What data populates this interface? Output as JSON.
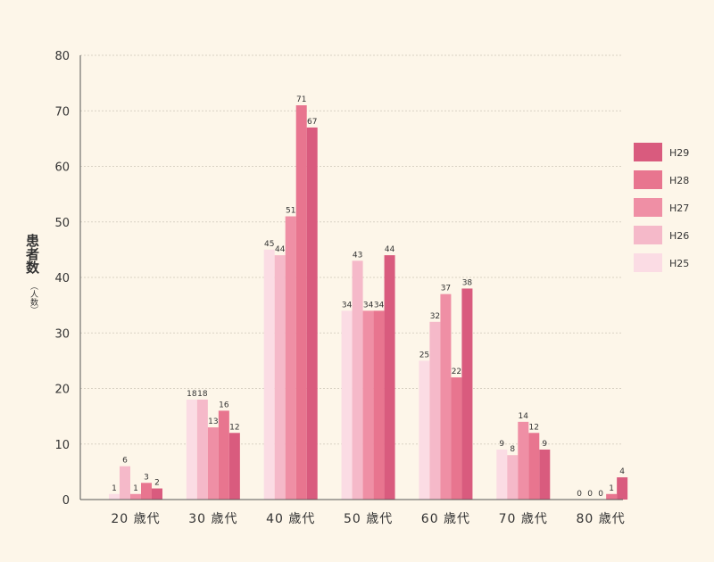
{
  "chart_data": {
    "type": "bar",
    "categories": [
      "20 歳代",
      "30 歳代",
      "40 歳代",
      "50 歳代",
      "60 歳代",
      "70 歳代",
      "80 歳代"
    ],
    "series": [
      {
        "name": "H25",
        "color": "#fbdce4",
        "values": [
          1,
          18,
          45,
          34,
          25,
          9,
          0
        ]
      },
      {
        "name": "H26",
        "color": "#f5b9c9",
        "values": [
          6,
          18,
          44,
          43,
          32,
          8,
          0
        ]
      },
      {
        "name": "H27",
        "color": "#ef8fa5",
        "values": [
          1,
          13,
          51,
          34,
          37,
          14,
          0
        ]
      },
      {
        "name": "H28",
        "color": "#e8758f",
        "values": [
          3,
          16,
          71,
          34,
          22,
          12,
          1
        ]
      },
      {
        "name": "H29",
        "color": "#d95b7e",
        "values": [
          2,
          12,
          67,
          44,
          38,
          9,
          4
        ]
      }
    ],
    "ylim": [
      0,
      80
    ],
    "yticks": [
      0,
      10,
      20,
      30,
      40,
      50,
      60,
      70,
      80
    ],
    "ylabel_main": "患者数",
    "ylabel_sub": "（人数）",
    "grid": true,
    "legend_position": "right",
    "legend_order": [
      "H29",
      "H28",
      "H27",
      "H26",
      "H25"
    ]
  }
}
